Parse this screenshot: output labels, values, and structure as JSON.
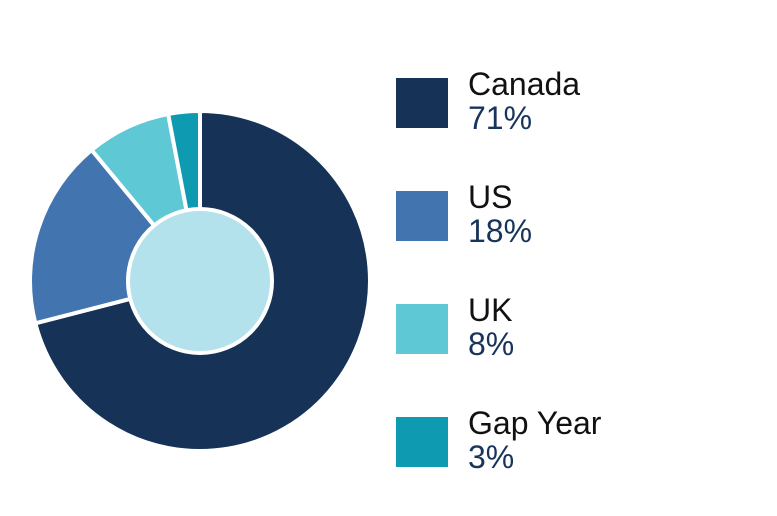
{
  "chart_data": {
    "type": "pie",
    "donut": true,
    "categories": [
      "Canada",
      "US",
      "UK",
      "Gap Year"
    ],
    "values": [
      71,
      18,
      8,
      3
    ],
    "value_labels": [
      "71%",
      "18%",
      "8%",
      "3%"
    ],
    "colors": [
      "#163256",
      "#4274b0",
      "#5ec8d4",
      "#0e9ab0"
    ],
    "center_color": "#b3e1ec",
    "legend_position": "right"
  }
}
